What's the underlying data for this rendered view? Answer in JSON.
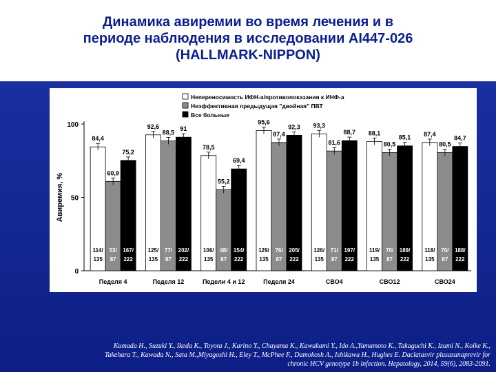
{
  "slide": {
    "title_lines": [
      "Динамика авиремии во время лечения и в",
      "периоде наблюдения в исследовании AI447-026",
      "(HALLMARK-NIPPON)"
    ],
    "citation_lines": [
      "Kumada H., Suzuki Y., Ikeda K., Toyota J., Karino Y., Chayama K., Kawakami Y., Ido A.,Yamamoto K., Takaguchi K., Izumi N., Koike K.,",
      "Takehara T., Kawada N., Sata M.,Miyagoshi H., Eley T., McPhee F., Damokosh A., Ishikawa H., Hughes E. Daclatasvir plusasunaprevir for",
      "chronic HCV genotype 1b infection. Hepatology, 2014, 59(6), 2083-2091."
    ]
  },
  "colors": {
    "title": "#0a1f8f",
    "background": "#1a2fa0",
    "series_white": "#ffffff",
    "series_gray": "#8c8c8c",
    "series_black": "#000000"
  },
  "chart_data": {
    "type": "bar",
    "ylabel": "Авиремия, %",
    "ylim": [
      0,
      100
    ],
    "yticks": [
      "0",
      "50",
      "100"
    ],
    "grid": false,
    "legend_position": "top-right",
    "categories": [
      "Педеля 4",
      "Педеля 12",
      "Педели 4 и 12",
      "Педеля 24",
      "СВО4",
      "СВО12",
      "СВО24"
    ],
    "series": [
      {
        "name": "Непереносимость ИФН-а/противопоказания к ИНФ-а",
        "color": "#ffffff",
        "values": [
          84.4,
          92.6,
          78.5,
          95.6,
          93.3,
          88.1,
          87.4
        ],
        "value_labels": [
          "84,4",
          "92,6",
          "78,5",
          "95,6",
          "93,3",
          "88,1",
          "87,4"
        ],
        "counts": [
          "114/ 135",
          "125/ 135",
          "106/ 135",
          "129/ 135",
          "126/ 135",
          "119/ 135",
          "118/ 135"
        ]
      },
      {
        "name": "Неэффективная предыдущая \"двойная\" ПВТ",
        "color": "#8c8c8c",
        "values": [
          60.9,
          88.5,
          55.2,
          87.4,
          81.6,
          80.5,
          80.5
        ],
        "value_labels": [
          "60,9",
          "88,5",
          "55,2",
          "87,4",
          "81,6",
          "80,5",
          "80,5"
        ],
        "counts": [
          "53/ 87",
          "77/ 87",
          "48/ 87",
          "76/ 87",
          "71/ 87",
          "70/ 87",
          "70/ 87"
        ]
      },
      {
        "name": "Все больные",
        "color": "#000000",
        "values": [
          75.2,
          91,
          69.4,
          92.3,
          88.7,
          85.1,
          84.7
        ],
        "value_labels": [
          "75,2",
          "91",
          "69,4",
          "92,3",
          "88,7",
          "85,1",
          "84,7"
        ],
        "counts": [
          "167/ 222",
          "202/ 222",
          "154/ 222",
          "205/ 222",
          "197/ 222",
          "189/ 222",
          "188/ 222"
        ]
      }
    ]
  }
}
